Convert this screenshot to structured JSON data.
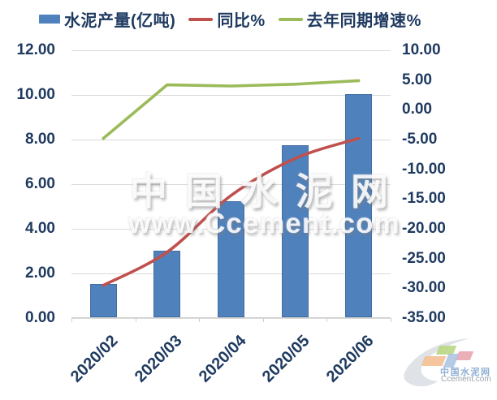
{
  "chart_data": {
    "type": "combo-bar-line",
    "categories": [
      "2020/02",
      "2020/03",
      "2020/04",
      "2020/05",
      "2020/06"
    ],
    "series": [
      {
        "name": "水泥产量(亿吨)",
        "type": "bar",
        "axis": "left",
        "color": "#4f81bd",
        "smooth": false,
        "values": [
          1.5,
          3.0,
          5.2,
          7.7,
          10.0
        ]
      },
      {
        "name": "同比%",
        "type": "line",
        "axis": "right",
        "color": "#c0504d",
        "smooth": true,
        "values": [
          -29.5,
          -23.9,
          -14.4,
          -8.2,
          -4.8
        ]
      },
      {
        "name": "去年同期增速%",
        "type": "line",
        "axis": "right",
        "color": "#9bbb59",
        "smooth": false,
        "values": [
          -4.8,
          4.2,
          4.0,
          4.3,
          4.9
        ]
      }
    ],
    "left_axis": {
      "min": 0,
      "max": 12,
      "ticks": [
        "12.00",
        "10.00",
        "8.00",
        "6.00",
        "4.00",
        "2.00",
        "0.00"
      ]
    },
    "right_axis": {
      "min": -35,
      "max": 10,
      "ticks": [
        "10.00",
        "5.00",
        "0.00",
        "-5.00",
        "-10.00",
        "-15.00",
        "-20.00",
        "-25.00",
        "-30.00",
        "-35.00"
      ]
    },
    "title": "",
    "xlabel": "",
    "ylabel": "",
    "legend_position": "top",
    "grid": true
  },
  "legend": {
    "items": [
      {
        "label": "水泥产量(亿吨)",
        "color": "#4f81bd",
        "marker": "square"
      },
      {
        "label": "同比%",
        "color": "#c0504d",
        "marker": "line"
      },
      {
        "label": "去年同期增速%",
        "color": "#9bbb59",
        "marker": "line"
      }
    ]
  },
  "watermark": {
    "title": "中国水泥网",
    "url": "www.Ccement.com"
  },
  "logo": {
    "title": "中国水泥网",
    "subtitle": "Ccement.com"
  },
  "colors": {
    "bar": "#4f81bd",
    "yoy_line": "#c0504d",
    "last_year_line": "#9bbb59",
    "axis_text": "#1f3a60",
    "gridline": "#d9d9d9",
    "logo_green": "#b5d57c",
    "logo_orange": "#f3bc8c",
    "logo_blue": "#a9c2e1",
    "logo_pink": "#e9a1aa",
    "logo_swoosh": "#dfe3e8"
  }
}
